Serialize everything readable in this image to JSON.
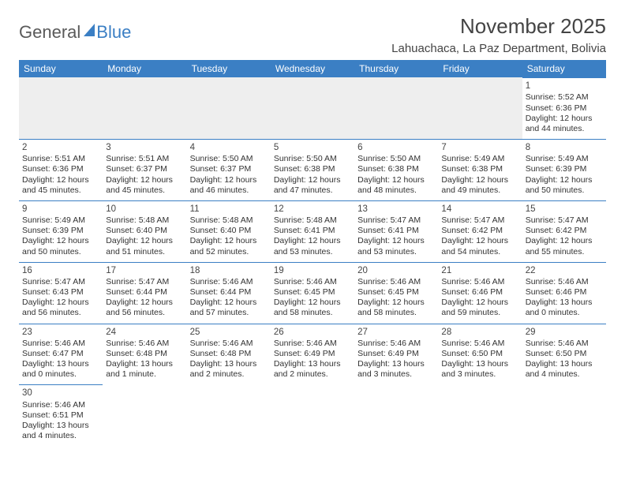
{
  "logo": {
    "part1": "General",
    "part2": "Blue"
  },
  "title": "November 2025",
  "location": "Lahuachaca, La Paz Department, Bolivia",
  "day_headers": [
    "Sunday",
    "Monday",
    "Tuesday",
    "Wednesday",
    "Thursday",
    "Friday",
    "Saturday"
  ],
  "colors": {
    "header_bg": "#3b7fc4",
    "header_fg": "#ffffff",
    "blank_bg": "#eeeeee",
    "border": "#3b7fc4",
    "text": "#333333"
  },
  "typography": {
    "title_fontsize_pt": 20,
    "location_fontsize_pt": 11,
    "header_fontsize_pt": 9,
    "cell_fontsize_pt": 8,
    "daynum_fontsize_pt": 9
  },
  "blank_leading_cells": 6,
  "days": [
    {
      "n": "1",
      "sunrise": "Sunrise: 5:52 AM",
      "sunset": "Sunset: 6:36 PM",
      "daylight": "Daylight: 12 hours and 44 minutes."
    },
    {
      "n": "2",
      "sunrise": "Sunrise: 5:51 AM",
      "sunset": "Sunset: 6:36 PM",
      "daylight": "Daylight: 12 hours and 45 minutes."
    },
    {
      "n": "3",
      "sunrise": "Sunrise: 5:51 AM",
      "sunset": "Sunset: 6:37 PM",
      "daylight": "Daylight: 12 hours and 45 minutes."
    },
    {
      "n": "4",
      "sunrise": "Sunrise: 5:50 AM",
      "sunset": "Sunset: 6:37 PM",
      "daylight": "Daylight: 12 hours and 46 minutes."
    },
    {
      "n": "5",
      "sunrise": "Sunrise: 5:50 AM",
      "sunset": "Sunset: 6:38 PM",
      "daylight": "Daylight: 12 hours and 47 minutes."
    },
    {
      "n": "6",
      "sunrise": "Sunrise: 5:50 AM",
      "sunset": "Sunset: 6:38 PM",
      "daylight": "Daylight: 12 hours and 48 minutes."
    },
    {
      "n": "7",
      "sunrise": "Sunrise: 5:49 AM",
      "sunset": "Sunset: 6:38 PM",
      "daylight": "Daylight: 12 hours and 49 minutes."
    },
    {
      "n": "8",
      "sunrise": "Sunrise: 5:49 AM",
      "sunset": "Sunset: 6:39 PM",
      "daylight": "Daylight: 12 hours and 50 minutes."
    },
    {
      "n": "9",
      "sunrise": "Sunrise: 5:49 AM",
      "sunset": "Sunset: 6:39 PM",
      "daylight": "Daylight: 12 hours and 50 minutes."
    },
    {
      "n": "10",
      "sunrise": "Sunrise: 5:48 AM",
      "sunset": "Sunset: 6:40 PM",
      "daylight": "Daylight: 12 hours and 51 minutes."
    },
    {
      "n": "11",
      "sunrise": "Sunrise: 5:48 AM",
      "sunset": "Sunset: 6:40 PM",
      "daylight": "Daylight: 12 hours and 52 minutes."
    },
    {
      "n": "12",
      "sunrise": "Sunrise: 5:48 AM",
      "sunset": "Sunset: 6:41 PM",
      "daylight": "Daylight: 12 hours and 53 minutes."
    },
    {
      "n": "13",
      "sunrise": "Sunrise: 5:47 AM",
      "sunset": "Sunset: 6:41 PM",
      "daylight": "Daylight: 12 hours and 53 minutes."
    },
    {
      "n": "14",
      "sunrise": "Sunrise: 5:47 AM",
      "sunset": "Sunset: 6:42 PM",
      "daylight": "Daylight: 12 hours and 54 minutes."
    },
    {
      "n": "15",
      "sunrise": "Sunrise: 5:47 AM",
      "sunset": "Sunset: 6:42 PM",
      "daylight": "Daylight: 12 hours and 55 minutes."
    },
    {
      "n": "16",
      "sunrise": "Sunrise: 5:47 AM",
      "sunset": "Sunset: 6:43 PM",
      "daylight": "Daylight: 12 hours and 56 minutes."
    },
    {
      "n": "17",
      "sunrise": "Sunrise: 5:47 AM",
      "sunset": "Sunset: 6:44 PM",
      "daylight": "Daylight: 12 hours and 56 minutes."
    },
    {
      "n": "18",
      "sunrise": "Sunrise: 5:46 AM",
      "sunset": "Sunset: 6:44 PM",
      "daylight": "Daylight: 12 hours and 57 minutes."
    },
    {
      "n": "19",
      "sunrise": "Sunrise: 5:46 AM",
      "sunset": "Sunset: 6:45 PM",
      "daylight": "Daylight: 12 hours and 58 minutes."
    },
    {
      "n": "20",
      "sunrise": "Sunrise: 5:46 AM",
      "sunset": "Sunset: 6:45 PM",
      "daylight": "Daylight: 12 hours and 58 minutes."
    },
    {
      "n": "21",
      "sunrise": "Sunrise: 5:46 AM",
      "sunset": "Sunset: 6:46 PM",
      "daylight": "Daylight: 12 hours and 59 minutes."
    },
    {
      "n": "22",
      "sunrise": "Sunrise: 5:46 AM",
      "sunset": "Sunset: 6:46 PM",
      "daylight": "Daylight: 13 hours and 0 minutes."
    },
    {
      "n": "23",
      "sunrise": "Sunrise: 5:46 AM",
      "sunset": "Sunset: 6:47 PM",
      "daylight": "Daylight: 13 hours and 0 minutes."
    },
    {
      "n": "24",
      "sunrise": "Sunrise: 5:46 AM",
      "sunset": "Sunset: 6:48 PM",
      "daylight": "Daylight: 13 hours and 1 minute."
    },
    {
      "n": "25",
      "sunrise": "Sunrise: 5:46 AM",
      "sunset": "Sunset: 6:48 PM",
      "daylight": "Daylight: 13 hours and 2 minutes."
    },
    {
      "n": "26",
      "sunrise": "Sunrise: 5:46 AM",
      "sunset": "Sunset: 6:49 PM",
      "daylight": "Daylight: 13 hours and 2 minutes."
    },
    {
      "n": "27",
      "sunrise": "Sunrise: 5:46 AM",
      "sunset": "Sunset: 6:49 PM",
      "daylight": "Daylight: 13 hours and 3 minutes."
    },
    {
      "n": "28",
      "sunrise": "Sunrise: 5:46 AM",
      "sunset": "Sunset: 6:50 PM",
      "daylight": "Daylight: 13 hours and 3 minutes."
    },
    {
      "n": "29",
      "sunrise": "Sunrise: 5:46 AM",
      "sunset": "Sunset: 6:50 PM",
      "daylight": "Daylight: 13 hours and 4 minutes."
    },
    {
      "n": "30",
      "sunrise": "Sunrise: 5:46 AM",
      "sunset": "Sunset: 6:51 PM",
      "daylight": "Daylight: 13 hours and 4 minutes."
    }
  ]
}
